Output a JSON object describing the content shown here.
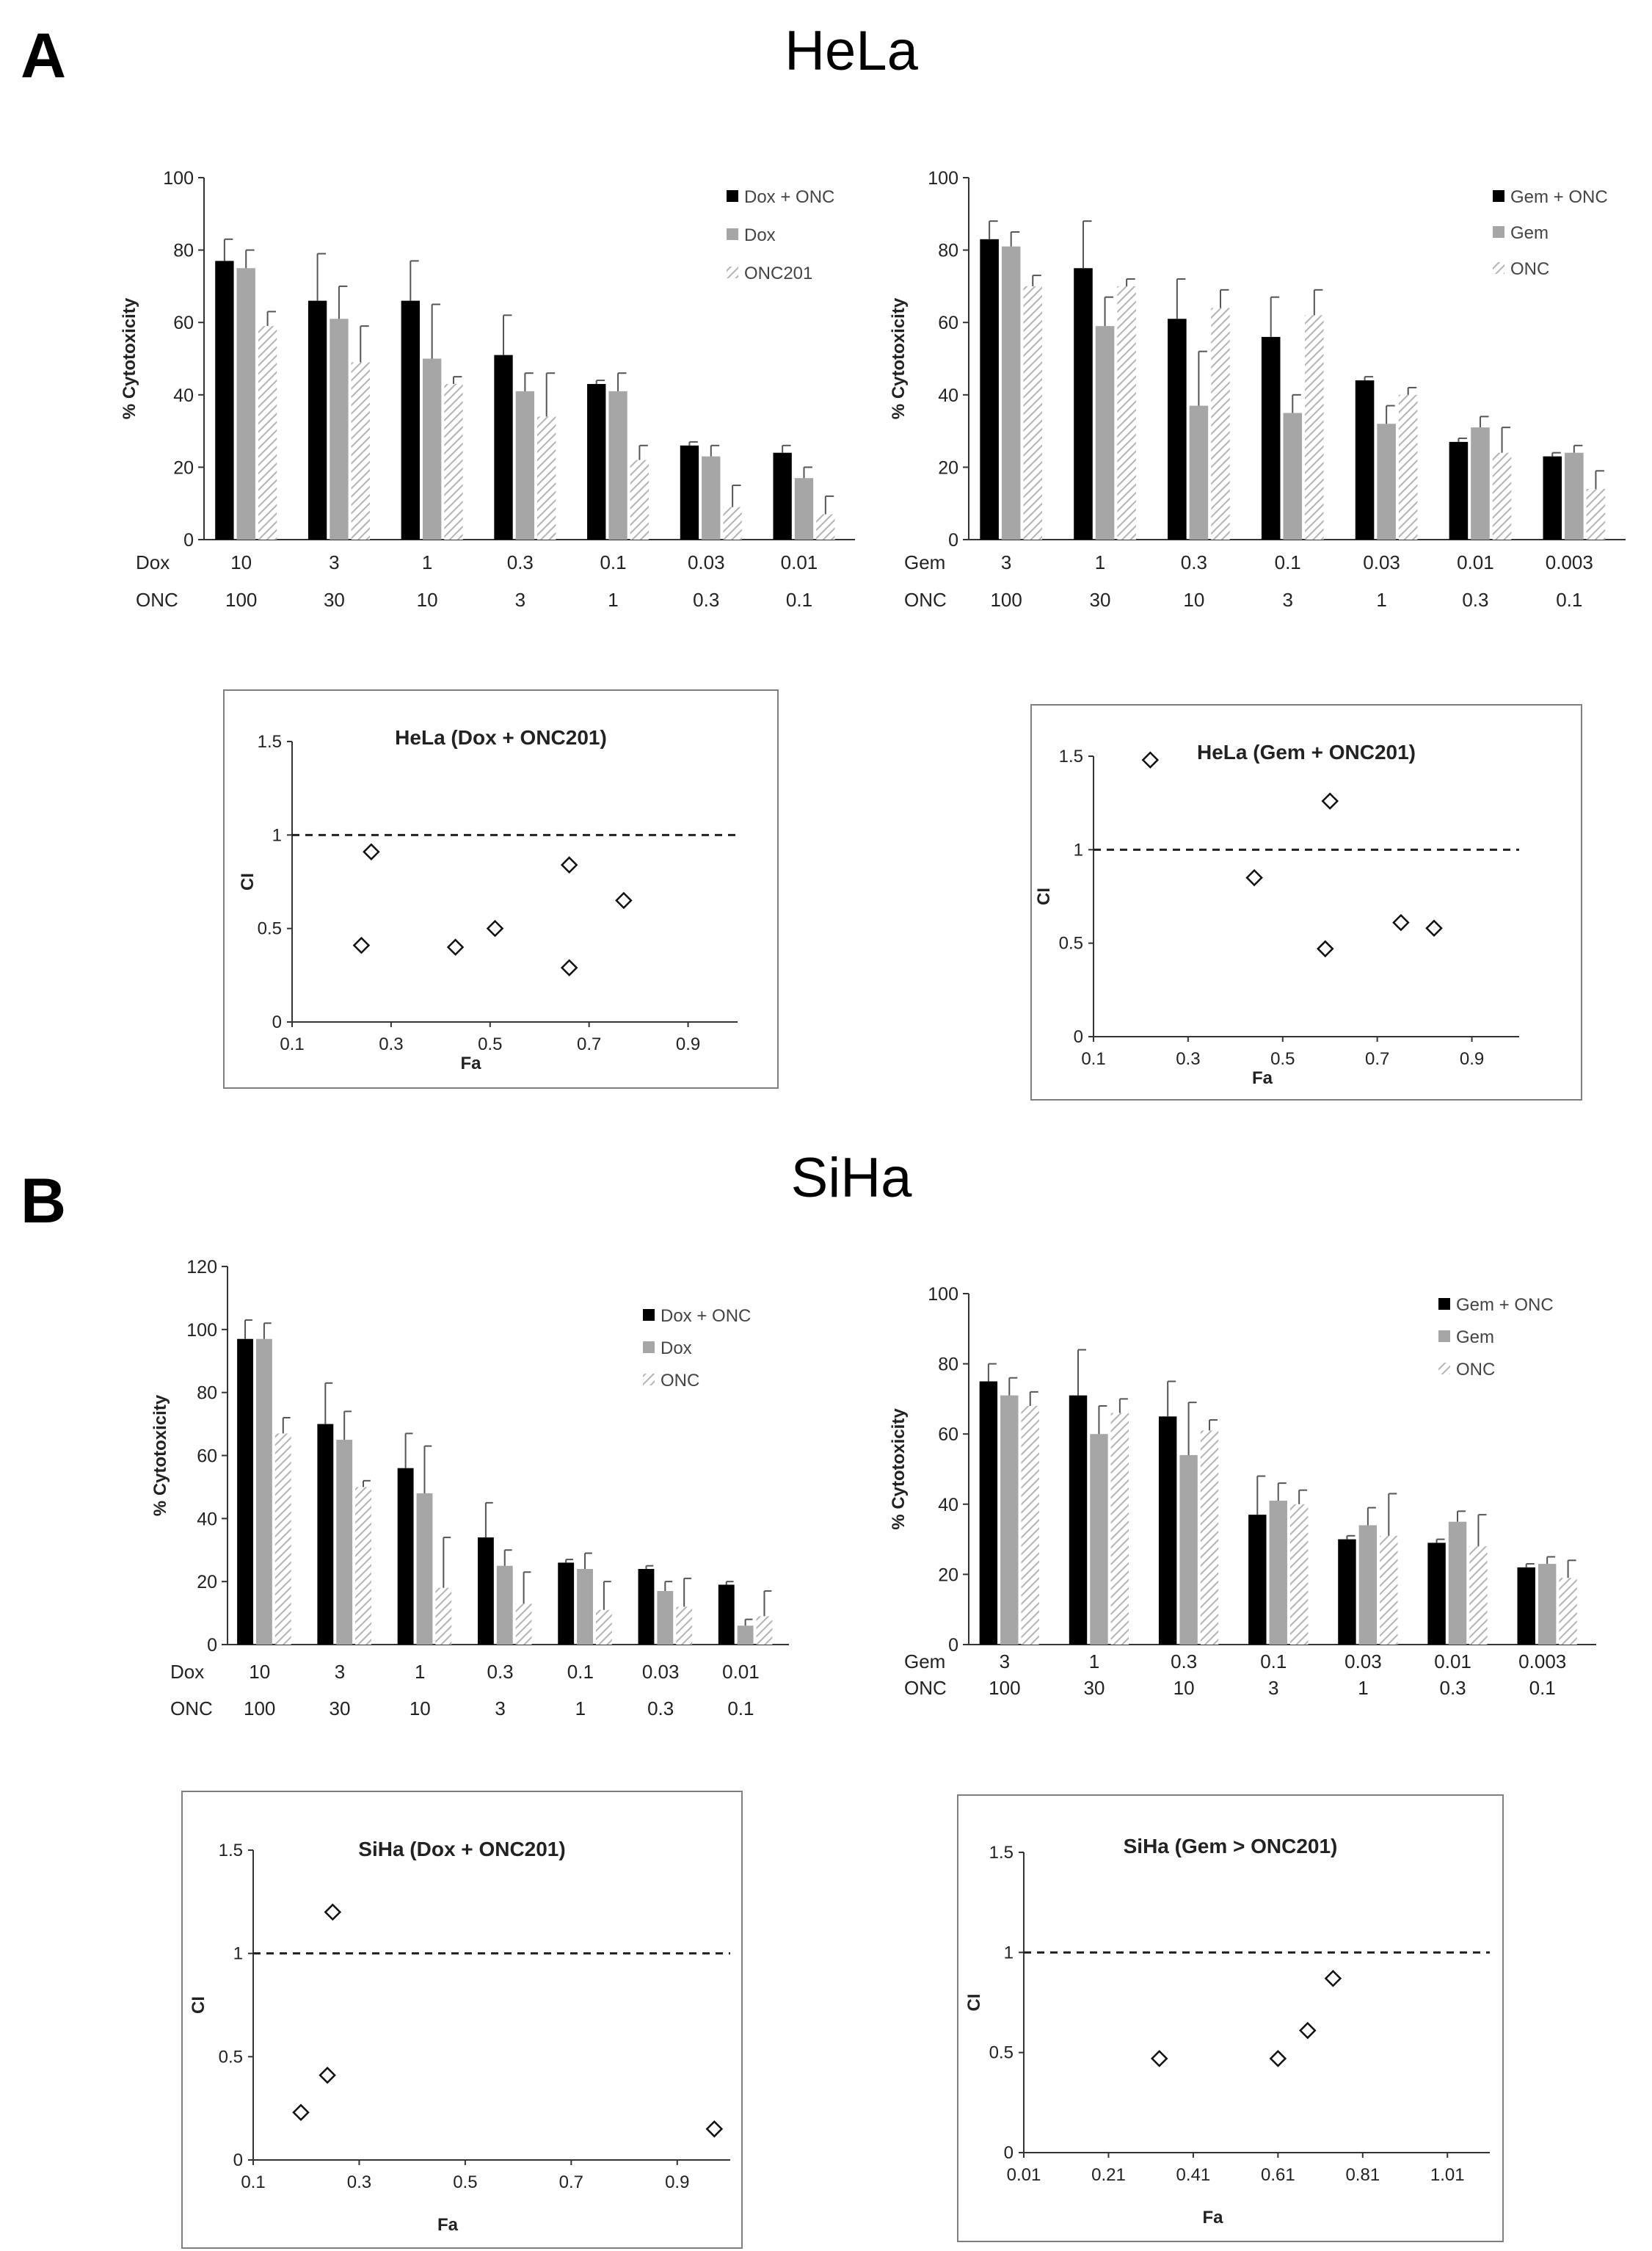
{
  "panels": [
    {
      "letter": "A",
      "title": "HeLa"
    },
    {
      "letter": "B",
      "title": "SiHa"
    }
  ],
  "colors": {
    "combo": "#000000",
    "single": "#a6a6a6",
    "onc_hatch": "#bdbdbd",
    "error_bar": "#555555",
    "axis": "#333333"
  },
  "chart_data": [
    {
      "type": "bar",
      "id": "hela-dox",
      "ylabel": "% Cytotoxicity",
      "ylim": [
        0,
        100
      ],
      "yticks": [
        0,
        20,
        40,
        60,
        80,
        100
      ],
      "dose_rows": [
        {
          "label": "Dox",
          "values": [
            "10",
            "3",
            "1",
            "0.3",
            "0.1",
            "0.03",
            "0.01"
          ]
        },
        {
          "label": "ONC",
          "values": [
            "100",
            "30",
            "10",
            "3",
            "1",
            "0.3",
            "0.1"
          ]
        }
      ],
      "series": [
        {
          "name": "Dox + ONC",
          "style": "combo",
          "values": [
            77,
            66,
            66,
            51,
            43,
            26,
            24
          ],
          "errors": [
            6,
            13,
            11,
            11,
            1,
            1,
            2
          ]
        },
        {
          "name": "Dox",
          "style": "single",
          "values": [
            75,
            61,
            50,
            41,
            41,
            23,
            17
          ],
          "errors": [
            5,
            9,
            15,
            5,
            5,
            3,
            3
          ]
        },
        {
          "name": "ONC201",
          "style": "hatch",
          "values": [
            59,
            49,
            43,
            34,
            22,
            9,
            7
          ],
          "errors": [
            4,
            10,
            2,
            12,
            4,
            6,
            5
          ]
        }
      ]
    },
    {
      "type": "bar",
      "id": "hela-gem",
      "ylabel": "% Cytotoxicity",
      "ylim": [
        0,
        100
      ],
      "yticks": [
        0,
        20,
        40,
        60,
        80,
        100
      ],
      "dose_rows": [
        {
          "label": "Gem",
          "values": [
            "3",
            "1",
            "0.3",
            "0.1",
            "0.03",
            "0.01",
            "0.003"
          ]
        },
        {
          "label": "ONC",
          "values": [
            "100",
            "30",
            "10",
            "3",
            "1",
            "0.3",
            "0.1"
          ]
        }
      ],
      "series": [
        {
          "name": "Gem + ONC",
          "style": "combo",
          "values": [
            83,
            75,
            61,
            56,
            44,
            27,
            23
          ],
          "errors": [
            5,
            13,
            11,
            11,
            1,
            1,
            1
          ]
        },
        {
          "name": "Gem",
          "style": "single",
          "values": [
            81,
            59,
            37,
            35,
            32,
            31,
            24
          ],
          "errors": [
            4,
            8,
            15,
            5,
            5,
            3,
            2
          ]
        },
        {
          "name": "ONC",
          "style": "hatch",
          "values": [
            70,
            70,
            64,
            62,
            40,
            24,
            14
          ],
          "errors": [
            3,
            2,
            5,
            7,
            2,
            7,
            5
          ]
        }
      ]
    },
    {
      "type": "bar",
      "id": "siha-dox",
      "ylabel": "% Cytotoxicity",
      "ylim": [
        0,
        120
      ],
      "yticks": [
        0,
        20,
        40,
        60,
        80,
        100,
        120
      ],
      "dose_rows": [
        {
          "label": "Dox",
          "values": [
            "10",
            "3",
            "1",
            "0.3",
            "0.1",
            "0.03",
            "0.01"
          ]
        },
        {
          "label": "ONC",
          "values": [
            "100",
            "30",
            "10",
            "3",
            "1",
            "0.3",
            "0.1"
          ]
        }
      ],
      "series": [
        {
          "name": "Dox + ONC",
          "style": "combo",
          "values": [
            97,
            70,
            56,
            34,
            26,
            24,
            19
          ],
          "errors": [
            6,
            13,
            11,
            11,
            1,
            1,
            1
          ]
        },
        {
          "name": "Dox",
          "style": "single",
          "values": [
            97,
            65,
            48,
            25,
            24,
            17,
            6
          ],
          "errors": [
            5,
            9,
            15,
            5,
            5,
            3,
            2
          ]
        },
        {
          "name": "ONC",
          "style": "hatch",
          "values": [
            67,
            50,
            18,
            13,
            11,
            12,
            9
          ],
          "errors": [
            5,
            2,
            16,
            10,
            9,
            9,
            8
          ]
        }
      ]
    },
    {
      "type": "bar",
      "id": "siha-gem",
      "ylabel": "% Cytotoxicity",
      "ylim": [
        0,
        100
      ],
      "yticks": [
        0,
        20,
        40,
        60,
        80,
        100
      ],
      "dose_rows": [
        {
          "label": "Gem",
          "values": [
            "3",
            "1",
            "0.3",
            "0.1",
            "0.03",
            "0.01",
            "0.003"
          ]
        },
        {
          "label": "ONC",
          "values": [
            "100",
            "30",
            "10",
            "3",
            "1",
            "0.3",
            "0.1"
          ]
        }
      ],
      "series": [
        {
          "name": "Gem + ONC",
          "style": "combo",
          "values": [
            75,
            71,
            65,
            37,
            30,
            29,
            22
          ],
          "errors": [
            5,
            13,
            10,
            11,
            1,
            1,
            1
          ]
        },
        {
          "name": "Gem",
          "style": "single",
          "values": [
            71,
            60,
            54,
            41,
            34,
            35,
            23
          ],
          "errors": [
            5,
            8,
            15,
            5,
            5,
            3,
            2
          ]
        },
        {
          "name": "ONC",
          "style": "hatch",
          "values": [
            68,
            66,
            61,
            40,
            31,
            28,
            19
          ],
          "errors": [
            4,
            4,
            3,
            4,
            12,
            9,
            5
          ]
        }
      ]
    },
    {
      "type": "scatter",
      "id": "hela-dox-ci",
      "title": "HeLa (Dox + ONC201)",
      "xlabel": "Fa",
      "ylabel": "CI",
      "xlim": [
        0.1,
        1.0
      ],
      "xticks": [
        "0.1",
        "0.3",
        "0.5",
        "0.7",
        "0.9"
      ],
      "ylim": [
        0,
        1.5
      ],
      "yticks": [
        "0",
        "0.5",
        "1",
        "1.5"
      ],
      "reference_line": 1,
      "points": [
        {
          "x": 0.24,
          "y": 0.41
        },
        {
          "x": 0.26,
          "y": 0.91
        },
        {
          "x": 0.43,
          "y": 0.4
        },
        {
          "x": 0.51,
          "y": 0.5
        },
        {
          "x": 0.66,
          "y": 0.84
        },
        {
          "x": 0.66,
          "y": 0.29
        },
        {
          "x": 0.77,
          "y": 0.65
        }
      ]
    },
    {
      "type": "scatter",
      "id": "hela-gem-ci",
      "title": "HeLa (Gem + ONC201)",
      "xlabel": "Fa",
      "ylabel": "CI",
      "xlim": [
        0.1,
        1.0
      ],
      "xticks": [
        "0.1",
        "0.3",
        "0.5",
        "0.7",
        "0.9"
      ],
      "ylim": [
        0,
        1.5
      ],
      "yticks": [
        "0",
        "0.5",
        "1",
        "1.5"
      ],
      "reference_line": 1,
      "points": [
        {
          "x": 0.22,
          "y": 1.48
        },
        {
          "x": 0.44,
          "y": 0.85
        },
        {
          "x": 0.59,
          "y": 0.47
        },
        {
          "x": 0.6,
          "y": 1.26
        },
        {
          "x": 0.75,
          "y": 0.61
        },
        {
          "x": 0.82,
          "y": 0.58
        }
      ]
    },
    {
      "type": "scatter",
      "id": "siha-dox-ci",
      "title": "SiHa (Dox + ONC201)",
      "xlabel": "Fa",
      "ylabel": "CI",
      "xlim": [
        0.1,
        1.0
      ],
      "xticks": [
        "0.1",
        "0.3",
        "0.5",
        "0.7",
        "0.9"
      ],
      "ylim": [
        0,
        1.5
      ],
      "yticks": [
        "0",
        "0.5",
        "1",
        "1.5"
      ],
      "reference_line": 1,
      "points": [
        {
          "x": 0.19,
          "y": 0.23
        },
        {
          "x": 0.24,
          "y": 0.41
        },
        {
          "x": 0.25,
          "y": 1.2
        },
        {
          "x": 0.97,
          "y": 0.15
        }
      ]
    },
    {
      "type": "scatter",
      "id": "siha-gem-ci",
      "title": "SiHa (Gem > ONC201)",
      "xlabel": "Fa",
      "ylabel": "CI",
      "xlim": [
        0.01,
        1.11
      ],
      "xticks": [
        "0.01",
        "0.21",
        "0.41",
        "0.61",
        "0.81",
        "1.01"
      ],
      "ylim": [
        0,
        1.5
      ],
      "yticks": [
        "0",
        "0.5",
        "1",
        "1.5"
      ],
      "reference_line": 1,
      "points": [
        {
          "x": 0.33,
          "y": 0.47
        },
        {
          "x": 0.61,
          "y": 0.47
        },
        {
          "x": 0.68,
          "y": 0.61
        },
        {
          "x": 0.74,
          "y": 0.87
        }
      ]
    }
  ]
}
